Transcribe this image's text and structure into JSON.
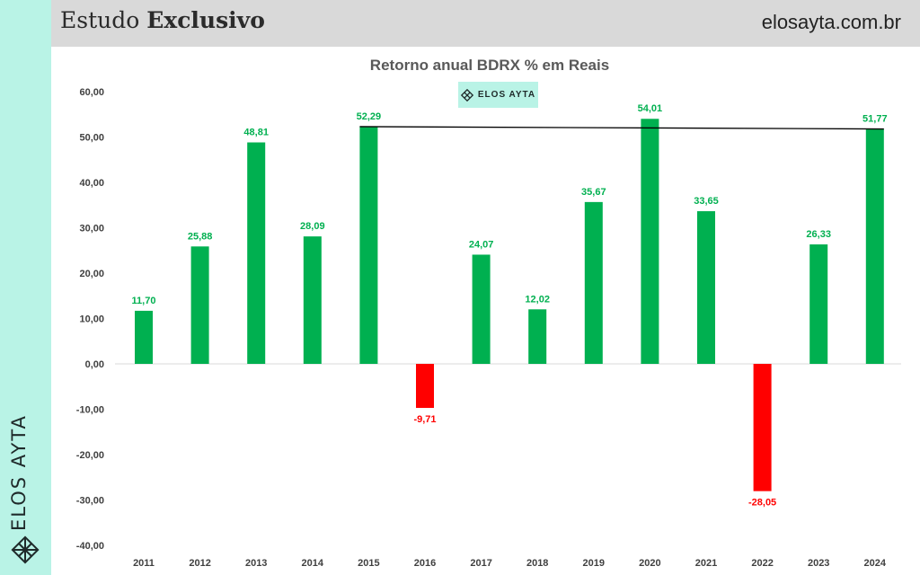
{
  "header": {
    "title_regular": "Estudo ",
    "title_bold": "Exclusivo",
    "site": "elosayta.com.br"
  },
  "brand": {
    "name": "ELOS AYTA",
    "icon": "elos-ayta-logo-icon",
    "accent_color": "#b9f3e6"
  },
  "chart_data": {
    "type": "bar",
    "title": "Retorno anual BDRX % em Reais",
    "xlabel": "",
    "ylabel": "",
    "categories": [
      "2011",
      "2012",
      "2013",
      "2014",
      "2015",
      "2016",
      "2017",
      "2018",
      "2019",
      "2020",
      "2021",
      "2022",
      "2023",
      "2024"
    ],
    "values": [
      11.7,
      25.88,
      48.81,
      28.09,
      52.29,
      -9.71,
      24.07,
      12.02,
      35.67,
      54.01,
      33.65,
      -28.05,
      26.33,
      51.77
    ],
    "data_labels": [
      "11,70",
      "25,88",
      "48,81",
      "28,09",
      "52,29",
      "-9,71",
      "24,07",
      "12,02",
      "35,67",
      "54,01",
      "33,65",
      "-28,05",
      "26,33",
      "51,77"
    ],
    "ylim": [
      -40,
      60
    ],
    "yticks": [
      60,
      50,
      40,
      30,
      20,
      10,
      0,
      -10,
      -20,
      -30,
      -40
    ],
    "ytick_labels": [
      "60,00",
      "50,00",
      "40,00",
      "30,00",
      "20,00",
      "10,00",
      "0,00",
      "-10,00",
      "-20,00",
      "-30,00",
      "-40,00"
    ],
    "grid": false,
    "positive_color": "#00b050",
    "negative_color": "#ff0000",
    "trend_line": {
      "from": "2015",
      "to": "2024",
      "y_from": 52.29,
      "y_to": 51.77,
      "color": "#000000"
    }
  }
}
